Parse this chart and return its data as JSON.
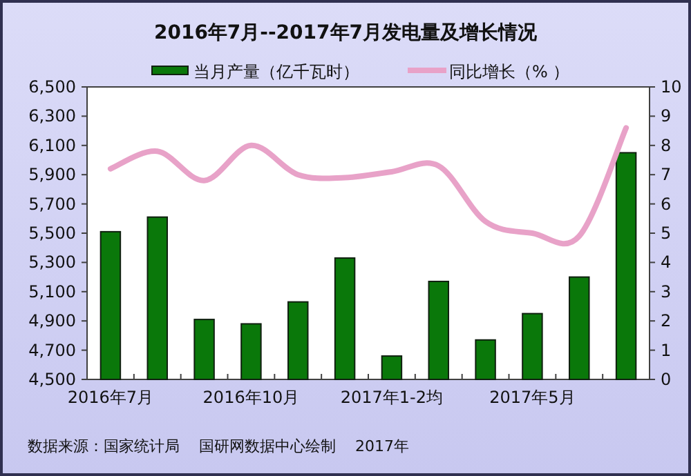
{
  "chart_data": {
    "type": "bar",
    "title": "2016年7月--2017年7月发电量及增长情况",
    "categories": [
      "2016年7月",
      null,
      null,
      "2016年10月",
      null,
      null,
      "2017年1-2均",
      null,
      null,
      "2017年5月",
      null,
      null
    ],
    "series": [
      {
        "name": "当月产量（亿千瓦时）",
        "color": "#0a780a",
        "values": [
          5510,
          5610,
          4910,
          4880,
          5030,
          5330,
          4660,
          5170,
          4770,
          4950,
          5200,
          6050
        ]
      },
      {
        "name": "同比增长（% ）",
        "type": "line",
        "axis": "y2",
        "color": "#e8a2c8",
        "values": [
          7.2,
          7.8,
          6.8,
          8.0,
          7.0,
          6.9,
          7.1,
          7.3,
          5.4,
          5.0,
          4.9,
          8.6
        ]
      }
    ],
    "ylim": [
      4500,
      6500
    ],
    "yticks": [
      {
        "value": 4500,
        "label": "4,500"
      },
      {
        "value": 4700,
        "label": "4,700"
      },
      {
        "value": 4900,
        "label": "4,900"
      },
      {
        "value": 5100,
        "label": "5,100"
      },
      {
        "value": 5300,
        "label": "5,300"
      },
      {
        "value": 5500,
        "label": "5,500"
      },
      {
        "value": 5700,
        "label": "5,700"
      },
      {
        "value": 5900,
        "label": "5,900"
      },
      {
        "value": 6100,
        "label": "6,100"
      },
      {
        "value": 6300,
        "label": "6,300"
      },
      {
        "value": 6500,
        "label": "6,500"
      }
    ],
    "y2lim": [
      0,
      10
    ],
    "y2ticks": [
      0,
      1,
      2,
      3,
      4,
      5,
      6,
      7,
      8,
      9,
      10
    ],
    "legend": "top",
    "grid": false,
    "annotations": [
      "数据来源：国家统计局    国研网数据中心绘制    2017年"
    ]
  }
}
